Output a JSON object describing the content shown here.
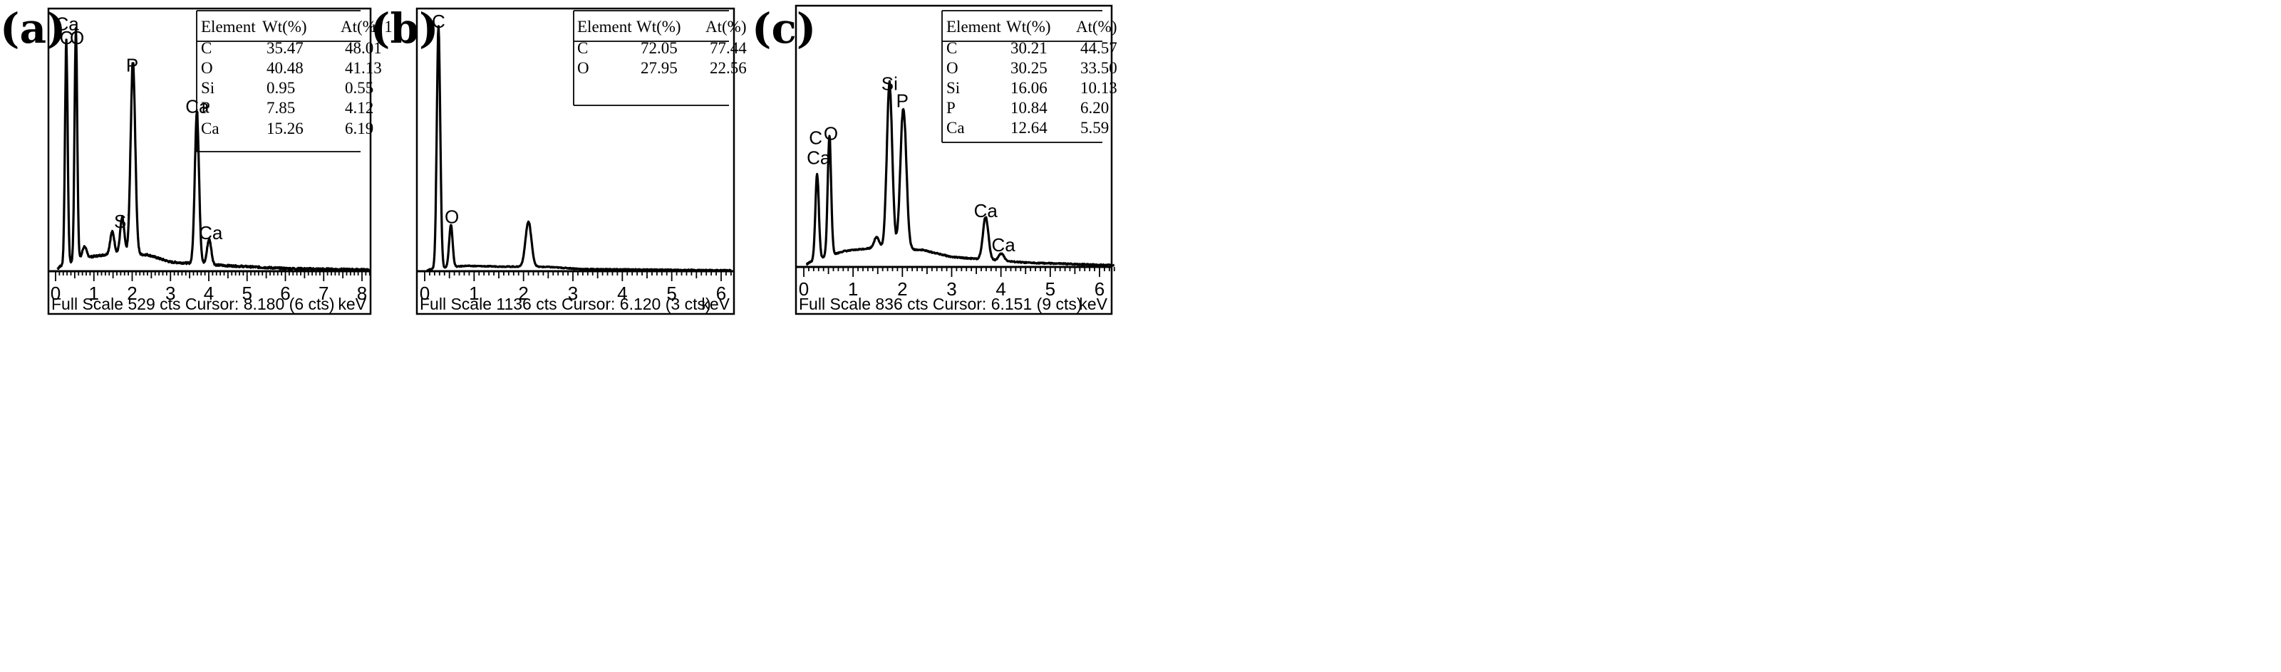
{
  "chart_data": [
    {
      "type": "line",
      "panel_label": "(a)",
      "xlabel": "keV",
      "xlim": [
        0,
        8.2
      ],
      "full_scale_cts": 529,
      "footer_text": "Full Scale 529 cts Cursor: 8.180  (6 cts)",
      "tick_labels": [
        "0",
        "1",
        "2",
        "3",
        "4",
        "5",
        "6",
        "7",
        "8"
      ],
      "peaks": [
        {
          "label": "C",
          "x": 0.28,
          "y": 480
        },
        {
          "label": "O",
          "x": 0.53,
          "y": 505
        },
        {
          "label": "Si",
          "x": 1.74,
          "y": 80
        },
        {
          "label": "P",
          "x": 2.02,
          "y": 420
        },
        {
          "label": "Ca",
          "x": 3.69,
          "y": 330
        },
        {
          "label": "Ca",
          "x": 4.01,
          "y": 55
        }
      ],
      "extra_peaks": [
        {
          "x": 1.48,
          "y": 50
        },
        {
          "x": 0.75,
          "y": 25
        }
      ],
      "background": [
        [
          0.1,
          10
        ],
        [
          0.8,
          30
        ],
        [
          1.3,
          36
        ],
        [
          2.4,
          36
        ],
        [
          3.0,
          20
        ],
        [
          4.5,
          12
        ],
        [
          6.0,
          6
        ],
        [
          8.2,
          3
        ]
      ],
      "peak_labels": [
        {
          "text": "Ca",
          "x": 0.3,
          "y": 525
        },
        {
          "text": "C",
          "x": 0.28,
          "y": 495
        },
        {
          "text": "O",
          "x": 0.56,
          "y": 495
        },
        {
          "text": "P",
          "x": 2.0,
          "y": 435
        },
        {
          "text": "Si",
          "x": 1.74,
          "y": 95
        },
        {
          "text": "Ca",
          "x": 3.7,
          "y": 345
        },
        {
          "text": "Ca",
          "x": 4.05,
          "y": 70
        }
      ],
      "table": {
        "headers": [
          "Element",
          "Wt(%)",
          "At(%)"
        ],
        "header_suffix": "n 1",
        "rows": [
          [
            "C",
            "35.47",
            "48.01"
          ],
          [
            "O",
            "40.48",
            "41.13"
          ],
          [
            "Si",
            "0.95",
            "0.55"
          ],
          [
            "P",
            "7.85",
            "4.12"
          ],
          [
            "Ca",
            "15.26",
            "6.19"
          ]
        ]
      }
    },
    {
      "type": "line",
      "panel_label": "(b)",
      "xlabel": "keV",
      "xlim": [
        0,
        6.2
      ],
      "full_scale_cts": 1136,
      "footer_text": "Full Scale 1136 cts Cursor: 6.120   (3 cts)",
      "tick_labels": [
        "0",
        "1",
        "2",
        "3",
        "4",
        "5",
        "6"
      ],
      "peaks": [
        {
          "label": "C",
          "x": 0.28,
          "y": 1130
        },
        {
          "label": "O",
          "x": 0.53,
          "y": 200
        },
        {
          "label": "",
          "x": 2.1,
          "y": 210
        }
      ],
      "extra_peaks": [],
      "background": [
        [
          0.1,
          8
        ],
        [
          0.8,
          25
        ],
        [
          1.5,
          22
        ],
        [
          2.5,
          20
        ],
        [
          3.2,
          10
        ],
        [
          6.2,
          4
        ]
      ],
      "peak_labels": [
        {
          "text": "C",
          "x": 0.28,
          "y": 1140
        },
        {
          "text": "O",
          "x": 0.55,
          "y": 225
        }
      ],
      "table": {
        "headers": [
          "Element",
          "Wt(%)",
          "At(%)"
        ],
        "header_suffix": "",
        "rows": [
          [
            "C",
            "72.05",
            "77.44"
          ],
          [
            "O",
            "27.95",
            "22.56"
          ]
        ]
      }
    },
    {
      "type": "line",
      "panel_label": "(c)",
      "xlabel": "keV",
      "xlim": [
        0,
        6.3
      ],
      "full_scale_cts": 836,
      "footer_text": "Full Scale 836 cts Cursor: 6.151   (9 cts)",
      "tick_labels": [
        "0",
        "1",
        "2",
        "3",
        "4",
        "5",
        "6"
      ],
      "peaks": [
        {
          "label": "C",
          "x": 0.27,
          "y": 300
        },
        {
          "label": "O",
          "x": 0.52,
          "y": 420
        },
        {
          "label": "Si",
          "x": 1.74,
          "y": 580
        },
        {
          "label": "P",
          "x": 2.02,
          "y": 500
        },
        {
          "label": "Ca",
          "x": 3.69,
          "y": 150
        },
        {
          "label": "Ca",
          "x": 4.01,
          "y": 25
        }
      ],
      "extra_peaks": [
        {
          "x": 1.48,
          "y": 40
        }
      ],
      "background": [
        [
          0.1,
          15
        ],
        [
          0.8,
          55
        ],
        [
          1.3,
          65
        ],
        [
          2.4,
          60
        ],
        [
          3.0,
          35
        ],
        [
          4.5,
          15
        ],
        [
          6.3,
          6
        ]
      ],
      "peak_labels": [
        {
          "text": "C",
          "x": 0.24,
          "y": 430
        },
        {
          "text": "Ca",
          "x": 0.3,
          "y": 360
        },
        {
          "text": "O",
          "x": 0.55,
          "y": 445
        },
        {
          "text": "Si",
          "x": 1.74,
          "y": 620
        },
        {
          "text": "P",
          "x": 2.0,
          "y": 560
        },
        {
          "text": "Ca",
          "x": 3.69,
          "y": 175
        },
        {
          "text": "Ca",
          "x": 4.05,
          "y": 55
        }
      ],
      "table": {
        "headers": [
          "Element",
          "Wt(%)",
          "At(%)"
        ],
        "header_suffix": "",
        "rows": [
          [
            "C",
            "30.21",
            "44.57"
          ],
          [
            "O",
            "30.25",
            "33.50"
          ],
          [
            "Si",
            "16.06",
            "10.13"
          ],
          [
            "P",
            "10.84",
            "6.20"
          ],
          [
            "Ca",
            "12.64",
            "5.59"
          ]
        ]
      }
    }
  ]
}
